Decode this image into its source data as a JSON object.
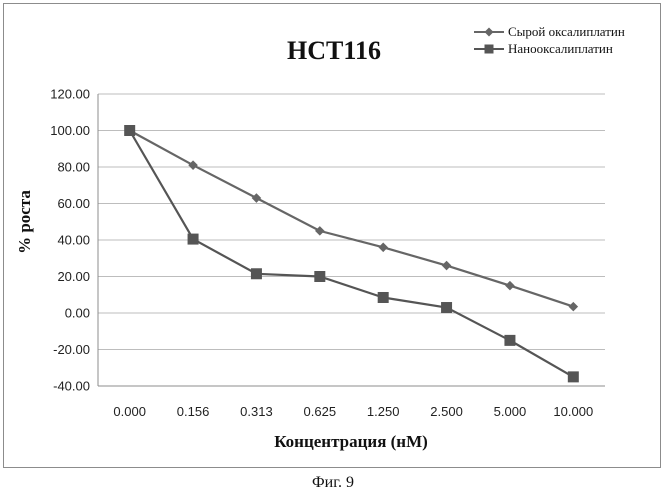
{
  "caption": "Фиг. 9",
  "chart_data": {
    "type": "line",
    "title": "HCT116",
    "xlabel": "Концентрация (нМ)",
    "ylabel": "% роста",
    "categories": [
      "0.000",
      "0.156",
      "0.313",
      "0.625",
      "1.250",
      "2.500",
      "5.000",
      "10.000"
    ],
    "ylim": [
      -40,
      120
    ],
    "yticks": [
      "120.00",
      "100.00",
      "80.00",
      "60.00",
      "40.00",
      "20.00",
      "0.00",
      "-20.00",
      "-40.00"
    ],
    "grid": true,
    "legend_position": "top-right",
    "series": [
      {
        "name": "Сырой оксалиплатин",
        "marker": "diamond",
        "color": "#666666",
        "values": [
          100,
          81,
          63,
          45,
          36,
          26,
          15,
          3.5
        ]
      },
      {
        "name": "Нанооксалиплатин",
        "marker": "square",
        "color": "#555555",
        "values": [
          100,
          40.5,
          21.5,
          20,
          8.5,
          3,
          -15,
          -35
        ]
      }
    ]
  }
}
